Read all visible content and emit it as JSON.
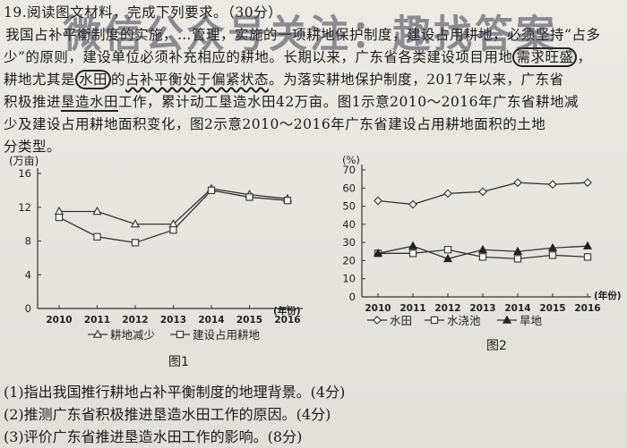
{
  "watermark": "微信公众号关注：趣找答案",
  "passage": {
    "line1": "19.阅读图文材料，完成下列要求。（30分）",
    "line2": "我国占补平衡制度的实施，…管理，实施的一项耕地保护制度，建设占用耕地，必须坚持“占多",
    "line3a": "少”的原则，建设单位必须补充相应的耕地。长期以来，广东省各类建设项目用地",
    "line3b": "需求旺盛",
    "line3c": "，",
    "line4a": "耕地尤其是",
    "line4b": "水田",
    "line4c": "的",
    "line4d": "占补平衡处于偏紧状态",
    "line4e": "。为落实耕地保护制度，2017年以来，广东省",
    "line5a": "积极推进",
    "line5b": "垦造水田",
    "line5c": "工作，累计动工垦造水田42万亩。图1示意2010～2016年广东省耕地减",
    "line6": "少及建设占用耕地面积变化，图2示意2010～2016年广东省建设占用耕地面积的土地",
    "line7": "分类型。"
  },
  "fig1": {
    "caption": "图1",
    "unit": "(万亩)",
    "x_axis_suffix": "(年份)",
    "legend": [
      "耕地减少",
      "建设占用耕地"
    ],
    "y_ticks": [
      "0",
      "4",
      "8",
      "12",
      "16"
    ],
    "x_ticks": [
      "2010",
      "2011",
      "2012",
      "2013",
      "2014",
      "2015",
      "2016"
    ]
  },
  "fig2": {
    "caption": "图2",
    "unit": "(%)",
    "x_axis_suffix": "(年份)",
    "legend": [
      "水田",
      "水浇池",
      "旱地"
    ],
    "y_ticks": [
      "0",
      "10",
      "20",
      "30",
      "40",
      "50",
      "60",
      "70"
    ],
    "x_ticks": [
      "2010",
      "2011",
      "2012",
      "2013",
      "2014",
      "2015",
      "2016"
    ]
  },
  "questions": {
    "q1": "(1)指出我国推行耕地占补平衡制度的地理背景。(4分)",
    "q2": "(2)推测广东省积极推进垦造水田工作的原因。(4分)",
    "q3": "(3)评价广东省推进垦造水田工作的影响。(8分)"
  },
  "chart_data": [
    {
      "type": "line",
      "x": [
        2010,
        2011,
        2012,
        2013,
        2014,
        2015,
        2016
      ],
      "ylim": [
        0,
        16
      ],
      "ylabel": "(万亩)",
      "xlabel": "(年份)",
      "series": [
        {
          "name": "耕地减少",
          "marker": "triangle",
          "values": [
            11.5,
            11.5,
            10.0,
            10.0,
            14.2,
            13.5,
            13.0
          ]
        },
        {
          "name": "建设占用耕地",
          "marker": "square",
          "values": [
            10.8,
            8.5,
            7.8,
            9.3,
            14.0,
            13.2,
            12.8
          ]
        }
      ],
      "grid": false
    },
    {
      "type": "line",
      "x": [
        2010,
        2011,
        2012,
        2013,
        2014,
        2015,
        2016
      ],
      "ylim": [
        0,
        70
      ],
      "ylabel": "(%)",
      "xlabel": "(年份)",
      "series": [
        {
          "name": "水田",
          "marker": "diamond",
          "values": [
            53,
            51,
            57,
            58,
            63,
            62,
            63
          ]
        },
        {
          "name": "水浇池",
          "marker": "square",
          "values": [
            24,
            24,
            26,
            22,
            21,
            23,
            22
          ]
        },
        {
          "name": "旱地",
          "marker": "triangle-filled",
          "values": [
            24,
            28,
            21,
            26,
            25,
            27,
            28
          ]
        }
      ],
      "grid": false
    }
  ]
}
